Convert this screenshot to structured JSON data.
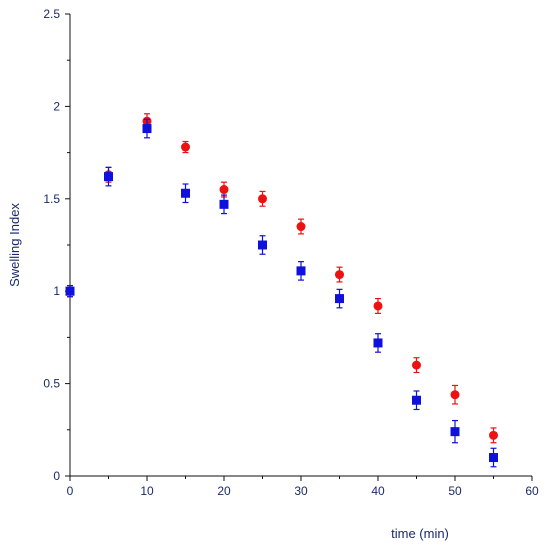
{
  "chart_data": {
    "type": "scatter",
    "title": "",
    "xlabel": "time (min)",
    "ylabel": "Swelling Index",
    "xlim": [
      0,
      60
    ],
    "ylim": [
      0,
      2.5
    ],
    "x_ticks": [
      "0",
      "10",
      "20",
      "30",
      "40",
      "50",
      "60"
    ],
    "y_ticks": [
      "0",
      "0.5",
      "1",
      "1.5",
      "2",
      "2.5"
    ],
    "grid": false,
    "legend": "none",
    "series": [
      {
        "marker": "circle",
        "color": "#ee1111",
        "x": [
          0,
          5,
          10,
          15,
          20,
          25,
          30,
          35,
          40,
          45,
          50,
          55
        ],
        "y": [
          1.0,
          1.63,
          1.92,
          1.78,
          1.55,
          1.5,
          1.35,
          1.09,
          0.92,
          0.6,
          0.44,
          0.22
        ],
        "err": [
          0.03,
          0.04,
          0.04,
          0.03,
          0.04,
          0.04,
          0.04,
          0.04,
          0.04,
          0.04,
          0.05,
          0.04
        ]
      },
      {
        "marker": "square",
        "color": "#1010dd",
        "x": [
          0,
          5,
          10,
          15,
          20,
          25,
          30,
          35,
          40,
          45,
          50,
          55
        ],
        "y": [
          1.0,
          1.62,
          1.88,
          1.53,
          1.47,
          1.25,
          1.11,
          0.96,
          0.72,
          0.41,
          0.24,
          0.1
        ],
        "err": [
          0.03,
          0.05,
          0.05,
          0.05,
          0.05,
          0.05,
          0.05,
          0.05,
          0.05,
          0.05,
          0.06,
          0.05
        ]
      }
    ]
  }
}
